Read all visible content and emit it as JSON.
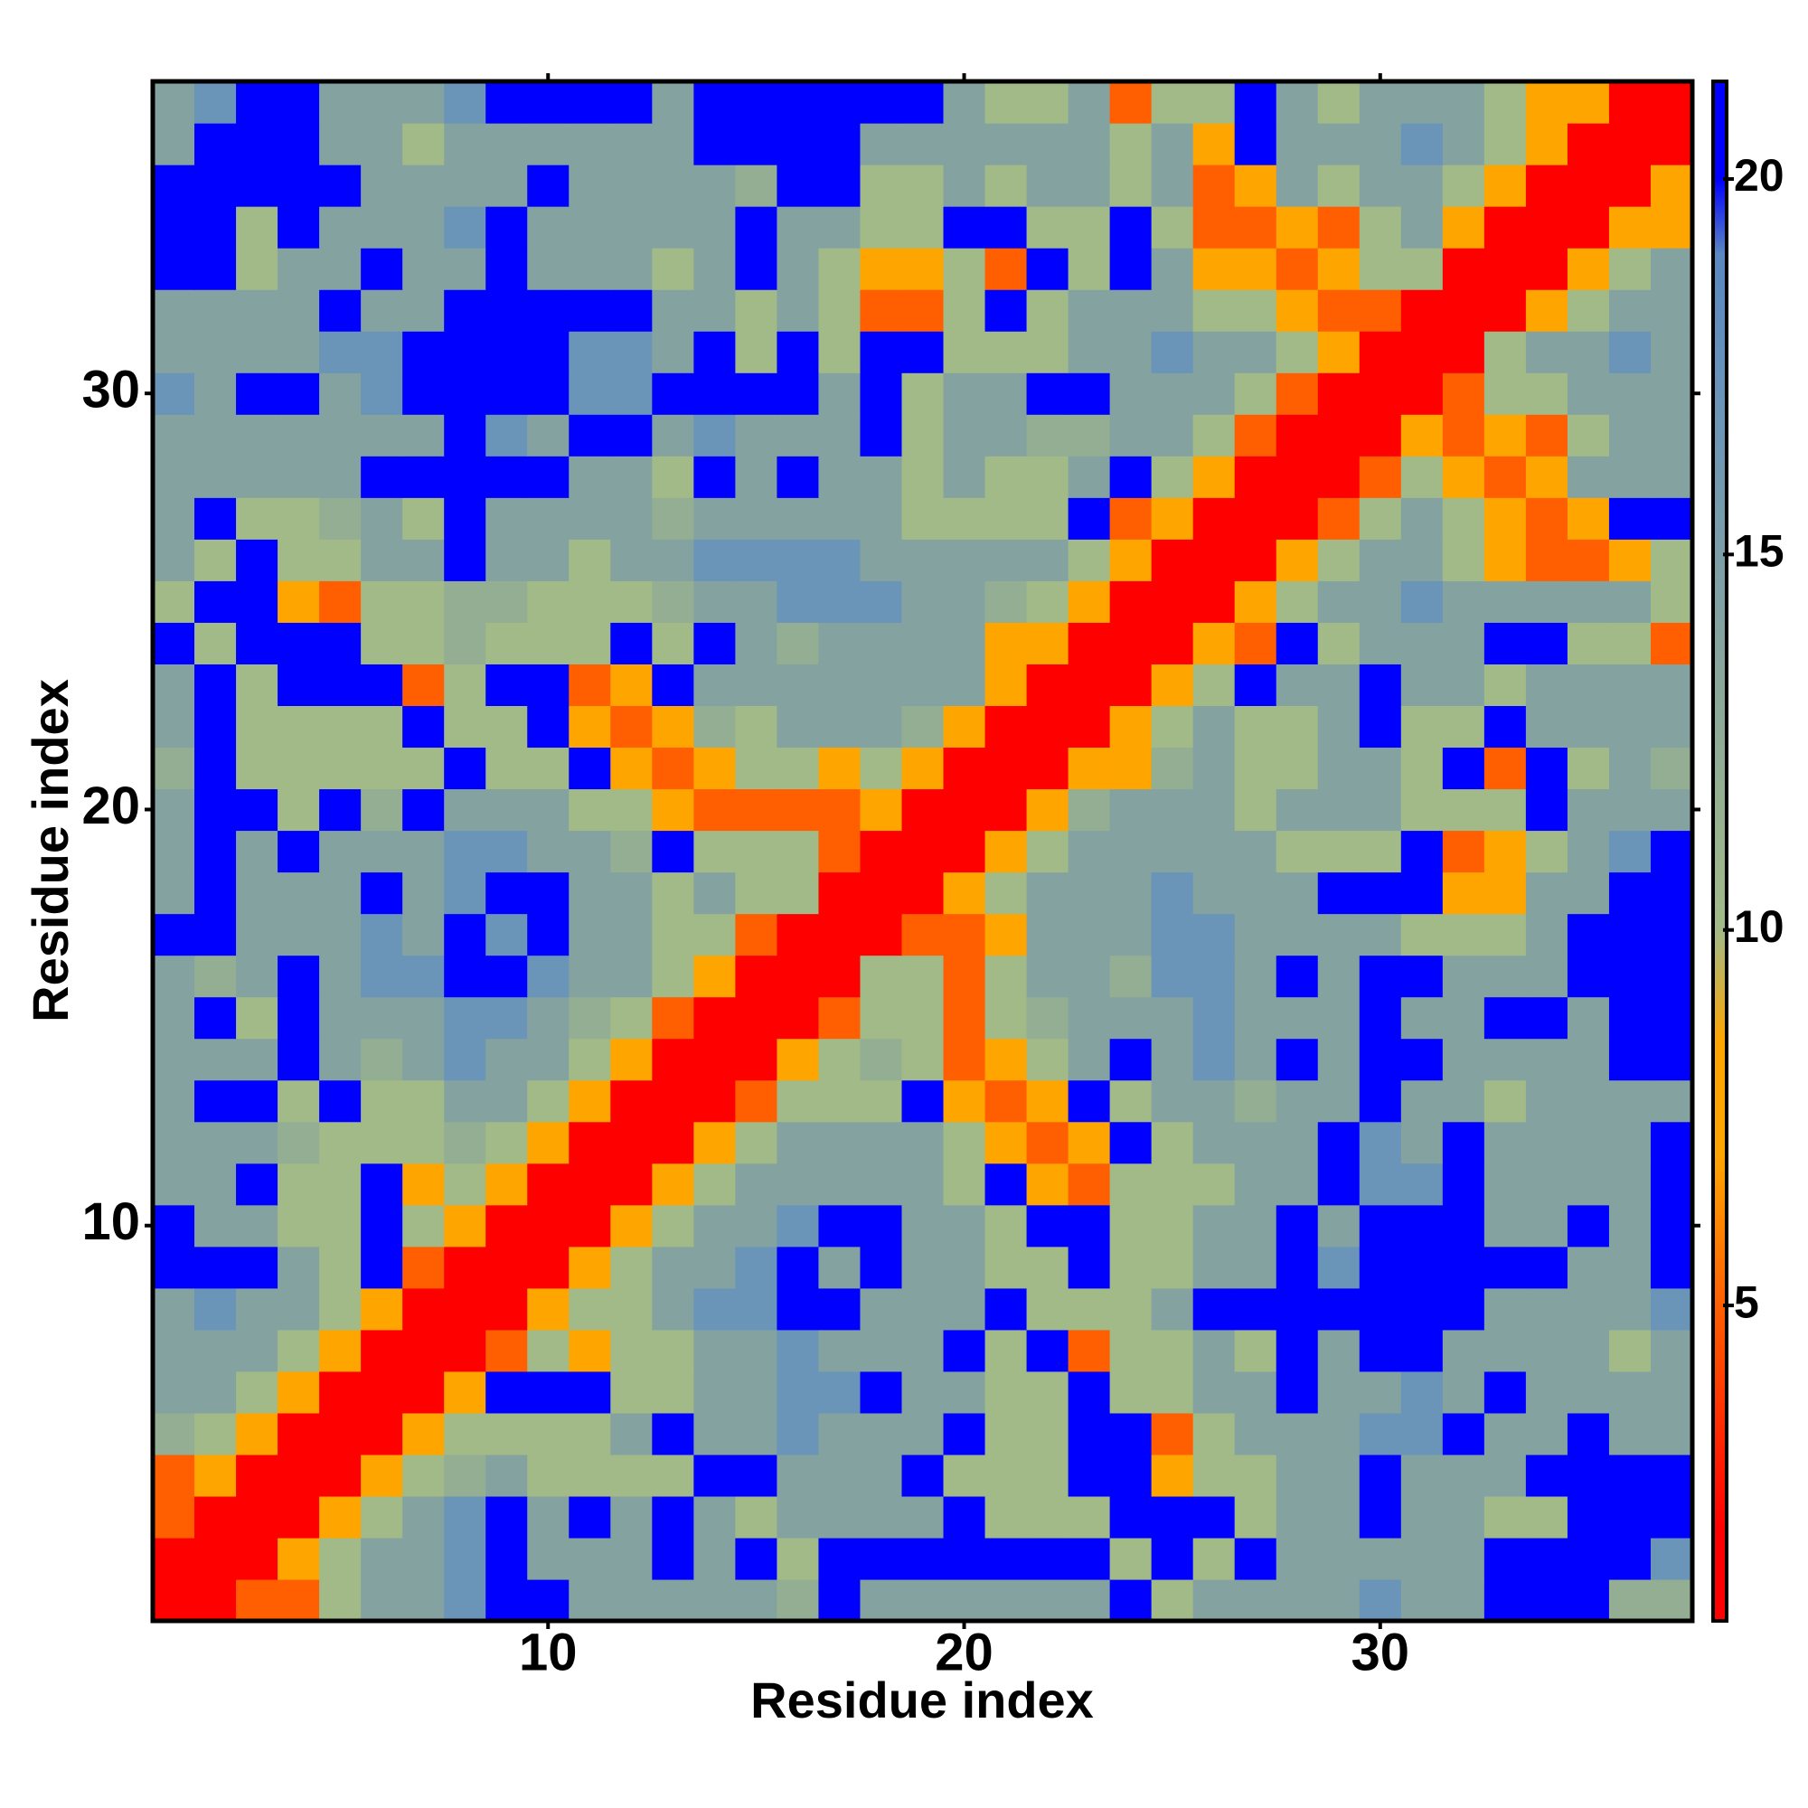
{
  "chart_data": {
    "type": "heatmap",
    "x_label": "Residue index",
    "y_label": "Residue index",
    "x": [
      1,
      2,
      3,
      4,
      5,
      6,
      7,
      8,
      9,
      10,
      11,
      12,
      13,
      14,
      15,
      16,
      17,
      18,
      19,
      20,
      21,
      22,
      23,
      24,
      25,
      26,
      27,
      28,
      29,
      30,
      31,
      32,
      33,
      34,
      35,
      36,
      37
    ],
    "y": [
      1,
      2,
      3,
      4,
      5,
      6,
      7,
      8,
      9,
      10,
      11,
      12,
      13,
      14,
      15,
      16,
      17,
      18,
      19,
      20,
      21,
      22,
      23,
      24,
      25,
      26,
      27,
      28,
      29,
      30,
      31,
      32,
      33,
      34,
      35,
      36,
      37
    ],
    "xlim": [
      0.5,
      37.5
    ],
    "ylim": [
      0.5,
      37.5
    ],
    "xticks": [
      10,
      20,
      30
    ],
    "yticks": [
      10,
      20,
      30
    ],
    "colorbar": {
      "lim": [
        0.8,
        21.3
      ],
      "ticks": [
        5,
        10,
        15,
        20
      ]
    },
    "colorscale": [
      [
        0.8,
        "#ff0000"
      ],
      [
        2,
        "#ff0000"
      ],
      [
        5,
        "#ff5f00"
      ],
      [
        7,
        "#ffa500"
      ],
      [
        8.5,
        "#ffa500"
      ],
      [
        10,
        "#a2ba88"
      ],
      [
        12,
        "#93ae92"
      ],
      [
        14,
        "#84a3a0"
      ],
      [
        17,
        "#6a94b8"
      ],
      [
        19,
        "#5a88c0"
      ],
      [
        20,
        "#0000ff"
      ],
      [
        21.3,
        "#0000ff"
      ]
    ],
    "z": [
      [
        2,
        2,
        5,
        5,
        10,
        14,
        14,
        17,
        21,
        21,
        14,
        14,
        14,
        14,
        14,
        12,
        21,
        14,
        14,
        14,
        14,
        14,
        14,
        21,
        10,
        14,
        14,
        14,
        14,
        17,
        14,
        14,
        21,
        21,
        21,
        12,
        12
      ],
      [
        2,
        2,
        2,
        7,
        10,
        14,
        14,
        17,
        21,
        14,
        14,
        14,
        21,
        14,
        21,
        10,
        21,
        21,
        21,
        21,
        21,
        21,
        21,
        10,
        21,
        10,
        21,
        14,
        14,
        14,
        14,
        14,
        21,
        21,
        21,
        21,
        17
      ],
      [
        5,
        2,
        2,
        2,
        7,
        10,
        14,
        17,
        21,
        14,
        21,
        14,
        21,
        14,
        10,
        14,
        14,
        14,
        14,
        21,
        10,
        10,
        10,
        21,
        21,
        21,
        10,
        14,
        14,
        21,
        14,
        14,
        10,
        10,
        21,
        21,
        21
      ],
      [
        5,
        7,
        2,
        2,
        2,
        7,
        10,
        12,
        14,
        10,
        10,
        10,
        10,
        21,
        21,
        14,
        14,
        14,
        21,
        10,
        10,
        10,
        21,
        21,
        7,
        10,
        10,
        14,
        14,
        21,
        14,
        14,
        14,
        21,
        21,
        21,
        21
      ],
      [
        12,
        10,
        7,
        2,
        2,
        2,
        7,
        10,
        10,
        10,
        10,
        14,
        21,
        14,
        14,
        17,
        14,
        14,
        14,
        21,
        10,
        10,
        21,
        21,
        5,
        10,
        14,
        14,
        14,
        17,
        17,
        21,
        14,
        14,
        21,
        14,
        14
      ],
      [
        14,
        14,
        10,
        7,
        2,
        2,
        2,
        7,
        21,
        21,
        21,
        10,
        10,
        14,
        14,
        17,
        17,
        21,
        14,
        14,
        10,
        10,
        21,
        10,
        10,
        14,
        14,
        21,
        14,
        14,
        17,
        14,
        21,
        14,
        14,
        14,
        14
      ],
      [
        14,
        14,
        14,
        10,
        7,
        2,
        2,
        2,
        5,
        10,
        7,
        10,
        10,
        14,
        14,
        17,
        14,
        14,
        14,
        21,
        10,
        21,
        5,
        10,
        10,
        14,
        10,
        21,
        14,
        21,
        21,
        14,
        14,
        14,
        14,
        10,
        14
      ],
      [
        14,
        17,
        14,
        14,
        10,
        7,
        2,
        2,
        2,
        7,
        10,
        10,
        14,
        17,
        17,
        21,
        21,
        14,
        14,
        14,
        21,
        10,
        10,
        10,
        14,
        21,
        21,
        21,
        21,
        21,
        21,
        21,
        14,
        14,
        14,
        14,
        17
      ],
      [
        21,
        21,
        21,
        14,
        10,
        21,
        5,
        2,
        2,
        2,
        7,
        10,
        14,
        14,
        17,
        21,
        14,
        21,
        14,
        14,
        10,
        10,
        21,
        10,
        10,
        14,
        14,
        21,
        17,
        21,
        21,
        21,
        21,
        21,
        14,
        14,
        21
      ],
      [
        21,
        14,
        14,
        10,
        10,
        21,
        10,
        7,
        2,
        2,
        2,
        7,
        10,
        14,
        14,
        17,
        21,
        21,
        14,
        14,
        10,
        21,
        21,
        10,
        10,
        14,
        14,
        21,
        14,
        21,
        21,
        21,
        14,
        14,
        21,
        14,
        21
      ],
      [
        14,
        14,
        21,
        10,
        10,
        21,
        7,
        10,
        7,
        2,
        2,
        2,
        7,
        10,
        14,
        14,
        14,
        14,
        14,
        10,
        21,
        7,
        5,
        10,
        10,
        10,
        14,
        14,
        21,
        17,
        17,
        21,
        14,
        14,
        14,
        14,
        21
      ],
      [
        14,
        14,
        14,
        12,
        10,
        10,
        10,
        12,
        10,
        7,
        2,
        2,
        2,
        7,
        10,
        14,
        14,
        14,
        14,
        10,
        7,
        5,
        7,
        21,
        10,
        14,
        14,
        14,
        21,
        17,
        14,
        21,
        14,
        14,
        14,
        14,
        21
      ],
      [
        14,
        21,
        21,
        10,
        21,
        10,
        10,
        14,
        14,
        10,
        7,
        2,
        2,
        2,
        5,
        10,
        10,
        10,
        21,
        7,
        5,
        7,
        21,
        10,
        14,
        14,
        12,
        14,
        14,
        21,
        14,
        14,
        10,
        14,
        14,
        14,
        14
      ],
      [
        14,
        14,
        14,
        21,
        14,
        12,
        14,
        17,
        14,
        14,
        10,
        7,
        2,
        2,
        2,
        7,
        10,
        12,
        10,
        5,
        7,
        10,
        14,
        21,
        14,
        17,
        14,
        21,
        14,
        21,
        21,
        14,
        14,
        14,
        14,
        21,
        21
      ],
      [
        14,
        21,
        10,
        21,
        14,
        14,
        14,
        17,
        17,
        14,
        12,
        10,
        5,
        2,
        2,
        2,
        5,
        10,
        10,
        5,
        10,
        12,
        14,
        14,
        14,
        17,
        14,
        14,
        14,
        21,
        14,
        14,
        21,
        21,
        14,
        21,
        21
      ],
      [
        14,
        12,
        14,
        21,
        14,
        17,
        17,
        21,
        21,
        17,
        14,
        14,
        10,
        7,
        2,
        2,
        2,
        10,
        10,
        5,
        10,
        14,
        14,
        12,
        17,
        17,
        14,
        21,
        14,
        21,
        21,
        14,
        14,
        14,
        21,
        21,
        21
      ],
      [
        21,
        21,
        14,
        14,
        14,
        17,
        14,
        21,
        17,
        21,
        14,
        14,
        10,
        10,
        5,
        2,
        2,
        2,
        5,
        5,
        7,
        14,
        14,
        14,
        17,
        17,
        14,
        14,
        14,
        14,
        10,
        10,
        10,
        14,
        21,
        21,
        21
      ],
      [
        14,
        21,
        14,
        14,
        14,
        21,
        14,
        17,
        21,
        21,
        14,
        14,
        10,
        14,
        10,
        10,
        2,
        2,
        2,
        7,
        10,
        14,
        14,
        14,
        17,
        14,
        14,
        14,
        21,
        21,
        21,
        7,
        7,
        14,
        14,
        21,
        21
      ],
      [
        14,
        21,
        14,
        21,
        14,
        14,
        14,
        17,
        17,
        14,
        14,
        12,
        21,
        10,
        10,
        10,
        5,
        2,
        2,
        2,
        7,
        10,
        14,
        14,
        14,
        14,
        14,
        10,
        10,
        10,
        21,
        5,
        7,
        10,
        14,
        17,
        21
      ],
      [
        14,
        21,
        21,
        10,
        21,
        12,
        21,
        14,
        14,
        14,
        10,
        10,
        7,
        5,
        5,
        5,
        5,
        7,
        2,
        2,
        2,
        7,
        12,
        14,
        14,
        14,
        10,
        14,
        14,
        14,
        10,
        10,
        10,
        21,
        14,
        14,
        14
      ],
      [
        12,
        21,
        10,
        10,
        10,
        10,
        10,
        21,
        10,
        10,
        21,
        7,
        5,
        7,
        10,
        10,
        7,
        10,
        7,
        2,
        2,
        2,
        7,
        7,
        12,
        14,
        10,
        10,
        14,
        14,
        10,
        21,
        5,
        21,
        10,
        14,
        12
      ],
      [
        14,
        21,
        10,
        10,
        10,
        10,
        21,
        10,
        10,
        21,
        7,
        5,
        7,
        12,
        10,
        14,
        14,
        14,
        12,
        7,
        2,
        2,
        2,
        7,
        10,
        14,
        10,
        10,
        14,
        21,
        10,
        10,
        21,
        14,
        14,
        14,
        14
      ],
      [
        14,
        21,
        10,
        21,
        21,
        21,
        5,
        10,
        21,
        21,
        5,
        7,
        21,
        14,
        14,
        14,
        14,
        14,
        14,
        14,
        7,
        2,
        2,
        2,
        7,
        10,
        21,
        14,
        14,
        21,
        14,
        14,
        10,
        14,
        14,
        14,
        14
      ],
      [
        21,
        10,
        21,
        21,
        21,
        10,
        10,
        12,
        10,
        10,
        10,
        21,
        10,
        21,
        14,
        12,
        14,
        14,
        14,
        14,
        7,
        7,
        2,
        2,
        2,
        7,
        5,
        21,
        10,
        14,
        14,
        14,
        21,
        21,
        10,
        10,
        5
      ],
      [
        10,
        21,
        21,
        7,
        5,
        10,
        10,
        12,
        12,
        10,
        10,
        10,
        12,
        14,
        14,
        17,
        17,
        17,
        14,
        14,
        12,
        10,
        7,
        2,
        2,
        2,
        7,
        10,
        14,
        14,
        17,
        14,
        14,
        14,
        14,
        14,
        10
      ],
      [
        14,
        10,
        21,
        10,
        10,
        14,
        14,
        21,
        14,
        14,
        10,
        14,
        14,
        17,
        17,
        17,
        17,
        14,
        14,
        14,
        14,
        14,
        10,
        7,
        2,
        2,
        2,
        7,
        10,
        14,
        14,
        10,
        7,
        5,
        5,
        7,
        10
      ],
      [
        14,
        21,
        10,
        10,
        12,
        14,
        10,
        21,
        14,
        14,
        14,
        14,
        12,
        14,
        14,
        14,
        14,
        14,
        10,
        10,
        10,
        10,
        21,
        5,
        7,
        2,
        2,
        2,
        5,
        10,
        14,
        10,
        7,
        5,
        7,
        21,
        21
      ],
      [
        14,
        14,
        14,
        14,
        14,
        21,
        21,
        21,
        21,
        21,
        14,
        14,
        10,
        21,
        14,
        21,
        14,
        14,
        10,
        14,
        10,
        10,
        14,
        21,
        10,
        7,
        2,
        2,
        2,
        5,
        10,
        7,
        5,
        7,
        14,
        14,
        14
      ],
      [
        14,
        14,
        14,
        14,
        14,
        14,
        14,
        21,
        17,
        14,
        21,
        21,
        14,
        17,
        14,
        14,
        14,
        21,
        10,
        14,
        14,
        12,
        12,
        14,
        14,
        10,
        5,
        2,
        2,
        2,
        7,
        5,
        7,
        5,
        10,
        14,
        14
      ],
      [
        17,
        14,
        21,
        21,
        14,
        17,
        21,
        21,
        21,
        21,
        17,
        17,
        21,
        21,
        21,
        21,
        14,
        21,
        10,
        14,
        14,
        21,
        21,
        14,
        14,
        14,
        10,
        5,
        2,
        2,
        2,
        5,
        10,
        10,
        14,
        14,
        14
      ],
      [
        14,
        14,
        14,
        14,
        17,
        17,
        21,
        21,
        21,
        21,
        17,
        17,
        14,
        21,
        10,
        21,
        10,
        21,
        21,
        10,
        10,
        10,
        14,
        14,
        17,
        14,
        14,
        10,
        7,
        2,
        2,
        2,
        10,
        14,
        14,
        17,
        14
      ],
      [
        14,
        14,
        14,
        14,
        21,
        14,
        14,
        21,
        21,
        21,
        21,
        21,
        14,
        14,
        10,
        14,
        10,
        5,
        5,
        10,
        21,
        10,
        14,
        14,
        14,
        10,
        10,
        7,
        5,
        5,
        2,
        2,
        2,
        7,
        10,
        14,
        14
      ],
      [
        21,
        21,
        10,
        14,
        14,
        21,
        14,
        14,
        21,
        14,
        14,
        14,
        10,
        14,
        21,
        14,
        10,
        7,
        7,
        10,
        5,
        21,
        10,
        21,
        14,
        7,
        7,
        5,
        7,
        10,
        10,
        2,
        2,
        2,
        7,
        10,
        14
      ],
      [
        21,
        21,
        10,
        21,
        14,
        14,
        14,
        17,
        21,
        14,
        14,
        14,
        14,
        14,
        21,
        14,
        14,
        10,
        10,
        21,
        21,
        10,
        10,
        21,
        10,
        5,
        5,
        7,
        5,
        10,
        14,
        7,
        2,
        2,
        2,
        7,
        7
      ],
      [
        21,
        21,
        21,
        21,
        21,
        14,
        14,
        14,
        14,
        21,
        14,
        14,
        14,
        14,
        12,
        21,
        21,
        10,
        10,
        14,
        10,
        14,
        14,
        10,
        14,
        5,
        7,
        14,
        10,
        14,
        14,
        10,
        7,
        2,
        2,
        2,
        7
      ],
      [
        14,
        21,
        21,
        21,
        14,
        14,
        10,
        14,
        14,
        14,
        14,
        14,
        14,
        21,
        21,
        21,
        21,
        14,
        14,
        14,
        14,
        14,
        14,
        10,
        14,
        7,
        21,
        14,
        14,
        14,
        17,
        14,
        10,
        7,
        2,
        2,
        2
      ],
      [
        14,
        17,
        21,
        21,
        14,
        14,
        14,
        17,
        21,
        21,
        21,
        21,
        14,
        21,
        21,
        21,
        21,
        21,
        21,
        14,
        10,
        10,
        14,
        5,
        10,
        10,
        21,
        14,
        10,
        14,
        14,
        14,
        10,
        7,
        7,
        2,
        2
      ]
    ]
  }
}
